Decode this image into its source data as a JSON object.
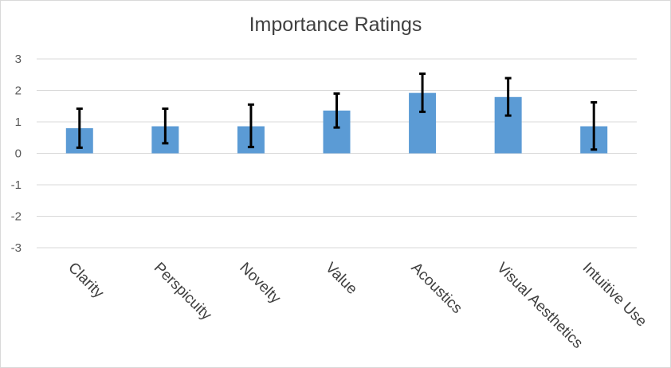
{
  "chart_data": {
    "type": "bar",
    "title": "Importance Ratings",
    "xlabel": "",
    "ylabel": "",
    "categories": [
      "Clarity",
      "Perspicuity",
      "Novelty",
      "Value",
      "Acoustics",
      "Visual Aesthetics",
      "Intuitive Use"
    ],
    "values": [
      0.8,
      0.86,
      0.86,
      1.36,
      1.92,
      1.79,
      0.86
    ],
    "error_low": [
      0.18,
      0.32,
      0.2,
      0.82,
      1.32,
      1.2,
      0.12
    ],
    "error_high": [
      1.42,
      1.42,
      1.55,
      1.9,
      2.53,
      2.39,
      1.62
    ],
    "ylim": [
      -3,
      3
    ],
    "yticks": [
      "3",
      "2",
      "1",
      "0",
      "-1",
      "-2",
      "-3"
    ],
    "grid": true,
    "legend": "none",
    "bar_color": "#5b9bd5",
    "errorbar_color": "#000000"
  }
}
